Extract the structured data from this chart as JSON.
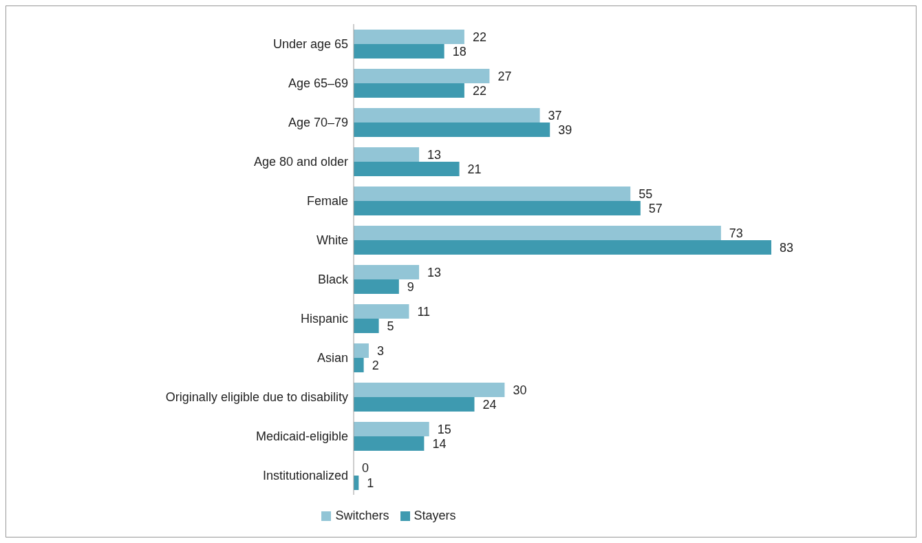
{
  "chart_data": {
    "type": "bar",
    "orientation": "horizontal",
    "categories": [
      "Under age 65",
      "Age 65–69",
      "Age 70–79",
      "Age 80 and older",
      "Female",
      "White",
      "Black",
      "Hispanic",
      "Asian",
      "Originally eligible due to disability",
      "Medicaid-eligible",
      "Institutionalized"
    ],
    "series": [
      {
        "name": "Switchers",
        "color": "#92c5d6",
        "values": [
          22,
          27,
          37,
          13,
          55,
          73,
          13,
          11,
          3,
          30,
          15,
          0
        ]
      },
      {
        "name": "Stayers",
        "color": "#3e9ab0",
        "values": [
          18,
          22,
          39,
          21,
          57,
          83,
          9,
          5,
          2,
          24,
          14,
          1
        ]
      }
    ],
    "data_labels": true,
    "legend": "bottom",
    "grid": false
  }
}
